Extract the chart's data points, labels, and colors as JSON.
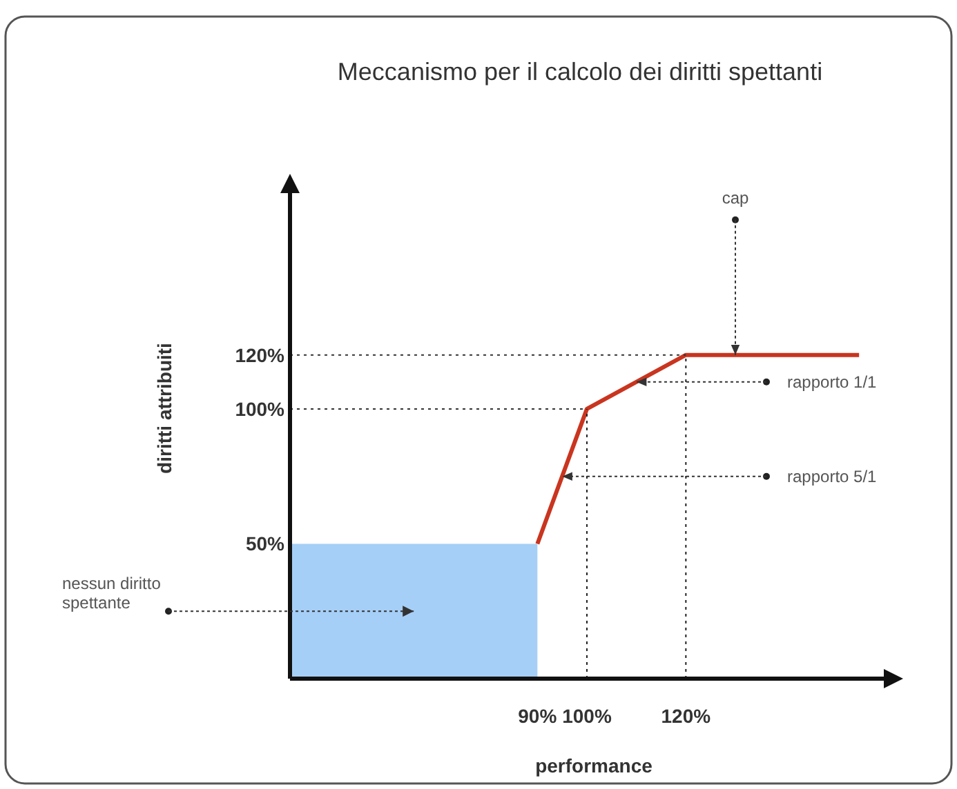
{
  "chart_data": {
    "type": "line",
    "title": "Meccanismo per il calcolo dei diritti spettanti",
    "xlabel": "performance",
    "ylabel": "diritti attribuiti",
    "series": [
      {
        "type": "area",
        "color": "#a6cff7",
        "x": [
          40,
          90
        ],
        "values": [
          50,
          50
        ]
      },
      {
        "color": "#c9351f",
        "x": [
          90,
          100,
          120,
          155
        ],
        "values": [
          50,
          100,
          120,
          120
        ]
      }
    ],
    "ref_lines": [
      {
        "axis": "x",
        "value": 100,
        "line_style": "dotted",
        "color": "#222222"
      },
      {
        "axis": "x",
        "value": 120,
        "line_style": "dotted",
        "color": "#222222"
      },
      {
        "axis": "y",
        "value": 100,
        "line_style": "dotted",
        "color": "#333333"
      },
      {
        "axis": "y",
        "value": 120,
        "line_style": "dotted",
        "color": "#333333"
      }
    ],
    "xlim": [
      40,
      160
    ],
    "ylim": [
      0,
      180
    ],
    "xticks": [
      {
        "value": 90,
        "label": "90%"
      },
      {
        "value": 100,
        "label": "100%"
      },
      {
        "value": 120,
        "label": "120%"
      }
    ],
    "yticks": [
      {
        "value": 50,
        "label": "50%"
      },
      {
        "value": 100,
        "label": "100%"
      },
      {
        "value": 120,
        "label": "120%"
      }
    ],
    "annotations": [
      {
        "text": "cap",
        "x": 130,
        "y": 120
      },
      {
        "text": "rapporto 1/1",
        "x": 110,
        "y": 110
      },
      {
        "text": "rapporto 5/1",
        "x": 95,
        "y": 75
      },
      "nessun diritto\nspettante"
    ],
    "grid": false,
    "marker": "none",
    "line_style": "solid"
  }
}
